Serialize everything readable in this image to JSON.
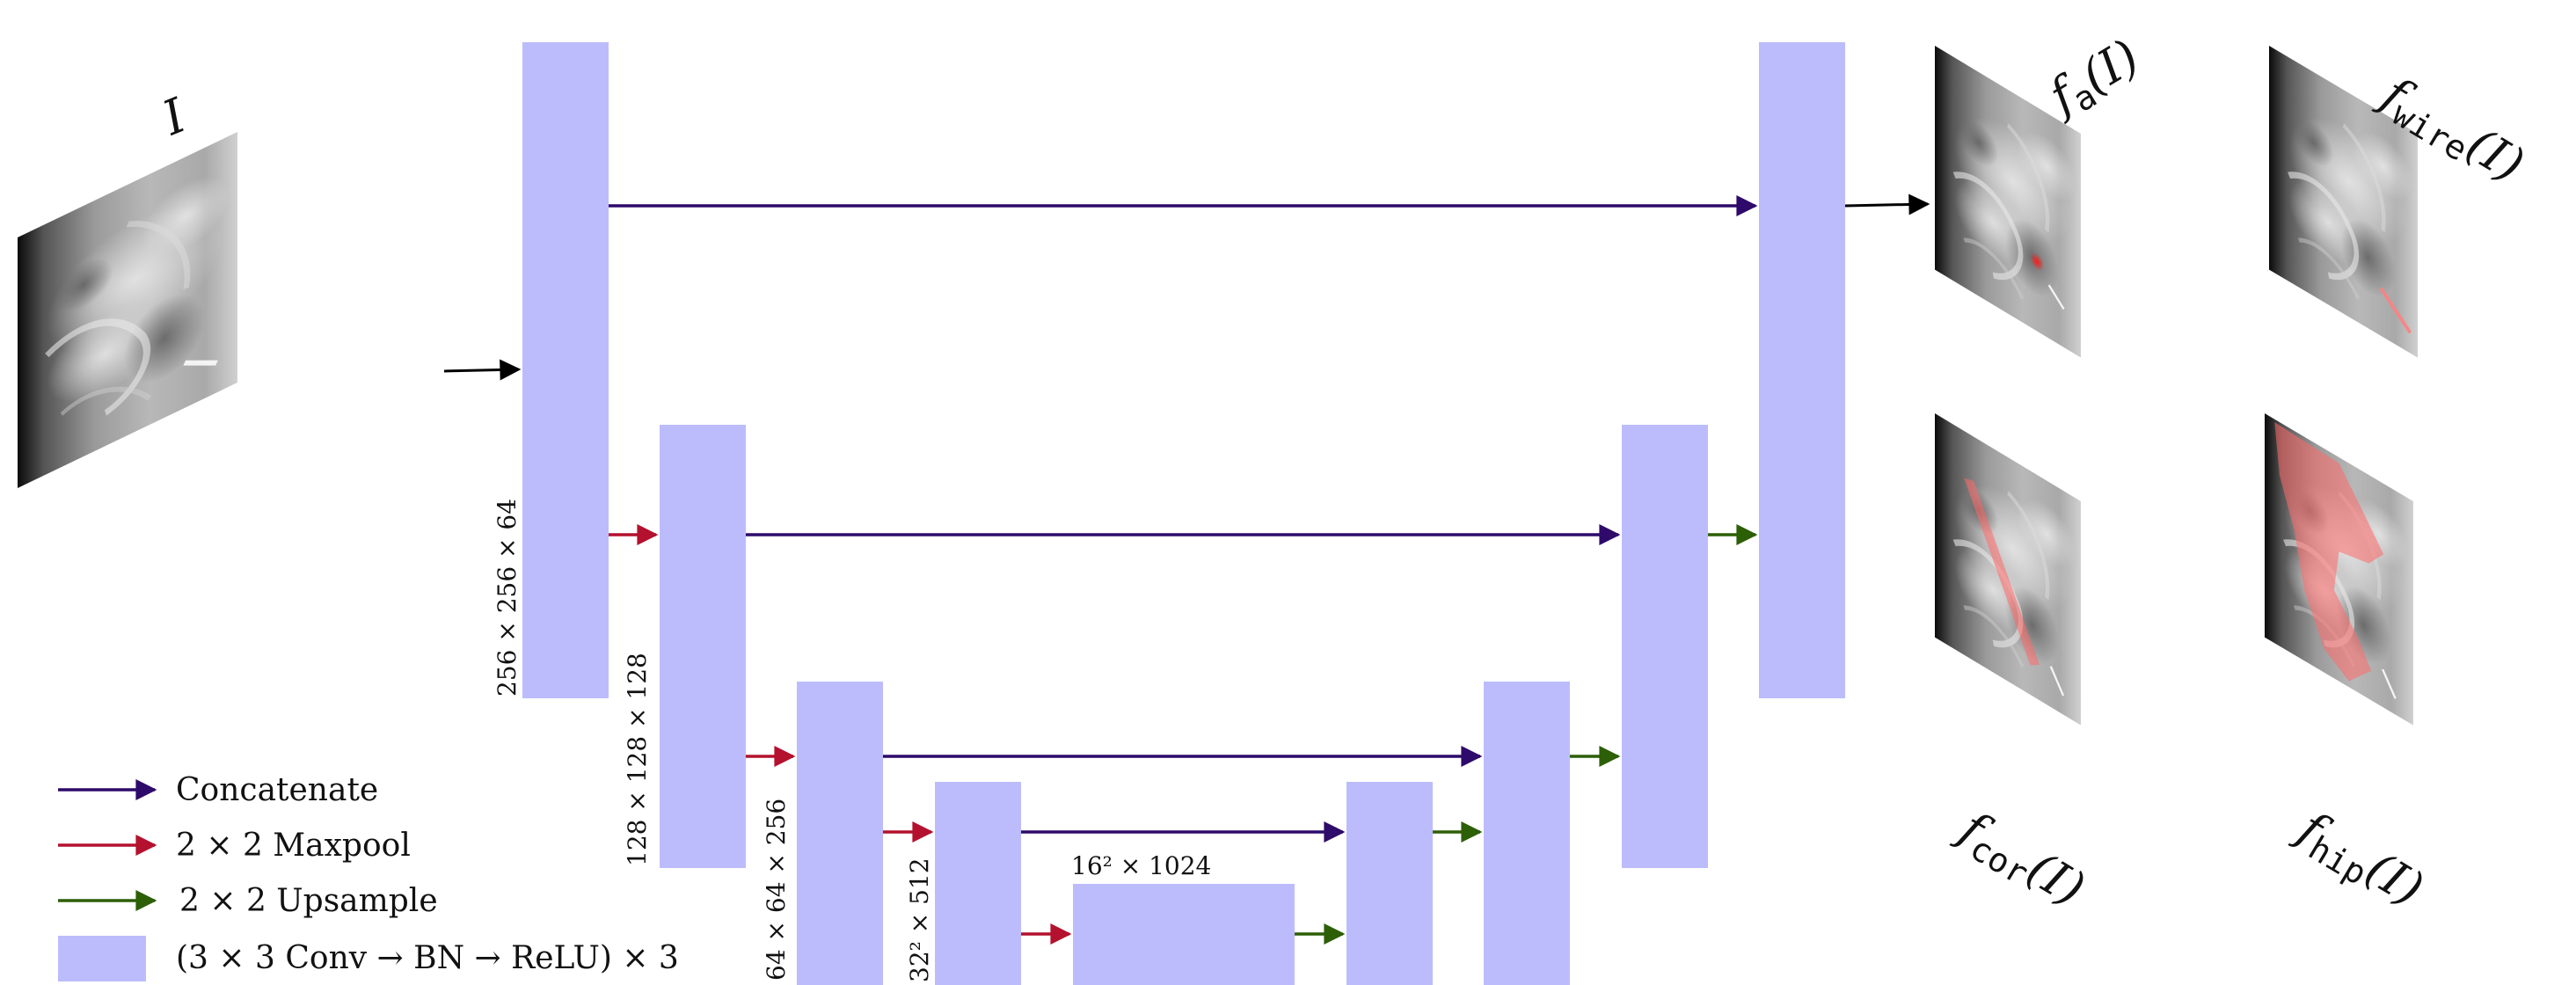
{
  "colors": {
    "block": "#bcbcfd",
    "concat": "#2e0a6b",
    "maxpool": "#b3112e",
    "upsample": "#2c5f06",
    "plain": "#000000",
    "overlay": "#ff6a6a"
  },
  "input": {
    "label": "I"
  },
  "dims": {
    "enc1": "256 × 256 × 64",
    "enc2": "128 × 128 × 128",
    "enc3": "64 × 64 × 256",
    "enc4": "32² × 512",
    "bottleneck": "16² × 1024"
  },
  "outputs": [
    {
      "fn": "f",
      "sub": "a",
      "arg": "(I)",
      "overlay": "landmark"
    },
    {
      "fn": "f",
      "sub": "wire",
      "arg": "(I)",
      "overlay": "wire"
    },
    {
      "fn": "f",
      "sub": "cor",
      "arg": "(I)",
      "overlay": "corridor"
    },
    {
      "fn": "f",
      "sub": "hip",
      "arg": "(I)",
      "overlay": "hip"
    }
  ],
  "legend": [
    {
      "key": "concat",
      "text": "Concatenate",
      "color": "#2e0a6b"
    },
    {
      "key": "maxpool",
      "text": "2 × 2 Maxpool",
      "color": "#b3112e"
    },
    {
      "key": "upsample",
      "text": "2 × 2 Upsample",
      "color": "#2c5f06"
    },
    {
      "key": "block",
      "text": "(3 × 3 Conv → BN → ReLU) × 3",
      "color": "#bcbcfd"
    }
  ]
}
